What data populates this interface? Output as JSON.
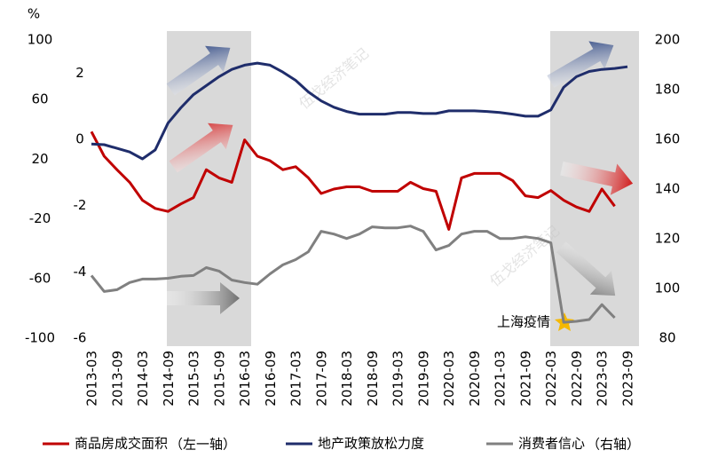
{
  "chart_data": {
    "type": "line",
    "y_label": "%",
    "categories": [
      "2013-03",
      null,
      "2013-09",
      null,
      "2014-03",
      null,
      "2014-09",
      null,
      "2015-03",
      null,
      "2015-09",
      null,
      "2016-03",
      null,
      "2016-09",
      null,
      "2017-03",
      null,
      "2017-09",
      null,
      "2018-03",
      null,
      "2018-09",
      null,
      "2019-03",
      null,
      "2019-09",
      null,
      "2020-03",
      null,
      "2020-09",
      null,
      "2021-03",
      null,
      "2021-09",
      null,
      "2022-03",
      null,
      "2022-09",
      null,
      "2023-03",
      null,
      "2023-09"
    ],
    "ylim": [
      -100,
      100
    ],
    "yticks": [
      100,
      60,
      20,
      -20,
      -60,
      -100
    ],
    "yinner_lim": [
      -6,
      3
    ],
    "yinner_ticks": [
      2,
      0,
      -2,
      -4,
      -6
    ],
    "y2lim": [
      80,
      200
    ],
    "y2ticks": [
      200,
      180,
      160,
      140,
      120,
      100,
      80
    ],
    "series": [
      {
        "name": "商品房成交面积",
        "legend_note": "（左一轴）",
        "color": "#c00000",
        "values": [
          38.5,
          22,
          13,
          4.5,
          -7.5,
          -13,
          -15,
          -10,
          -5.7,
          13,
          7.5,
          4.5,
          33,
          22,
          19,
          13,
          15,
          7.5,
          -3,
          0,
          1.5,
          1.5,
          -1.5,
          -1.5,
          -1.5,
          4.5,
          0.3,
          -1.5,
          -27,
          7.5,
          10.5,
          10.5,
          10.5,
          5.7,
          -4.5,
          -5.7,
          -1,
          -7.5,
          -12,
          -15,
          0,
          -11.5,
          null
        ]
      },
      {
        "name": "地产政策放松力度",
        "color": "#1f2d6b",
        "axis": "y_inner",
        "values": [
          -0.14,
          -0.16,
          -0.27,
          -0.38,
          -0.59,
          -0.32,
          0.49,
          0.95,
          1.35,
          1.62,
          1.89,
          2.11,
          2.24,
          2.3,
          2.24,
          2.03,
          1.78,
          1.43,
          1.16,
          0.97,
          0.84,
          0.76,
          0.76,
          0.76,
          0.81,
          0.81,
          0.78,
          0.78,
          0.86,
          0.86,
          0.86,
          0.84,
          0.81,
          0.76,
          0.7,
          0.7,
          0.89,
          1.57,
          1.89,
          2.05,
          2.11,
          2.14,
          2.19
        ]
      },
      {
        "name": "消费者信心",
        "legend_note": "（右轴）",
        "color": "#808080",
        "axis": "y2",
        "values": [
          105.2,
          98.8,
          99.5,
          102.4,
          103.8,
          103.8,
          104.1,
          104.9,
          105.2,
          108.4,
          107,
          103.4,
          102.4,
          101.7,
          105.9,
          109.5,
          111.6,
          114.8,
          123,
          121.9,
          120.1,
          121.9,
          124.8,
          124.4,
          124.4,
          125.1,
          123,
          115.5,
          117.3,
          121.9,
          123,
          123,
          120.1,
          120.1,
          120.8,
          120.1,
          118.4,
          86.4,
          86.8,
          87.5,
          93.5,
          88.2,
          null
        ]
      }
    ],
    "annotation": "上海疫情",
    "watermark": "伍戈经济笔记"
  }
}
